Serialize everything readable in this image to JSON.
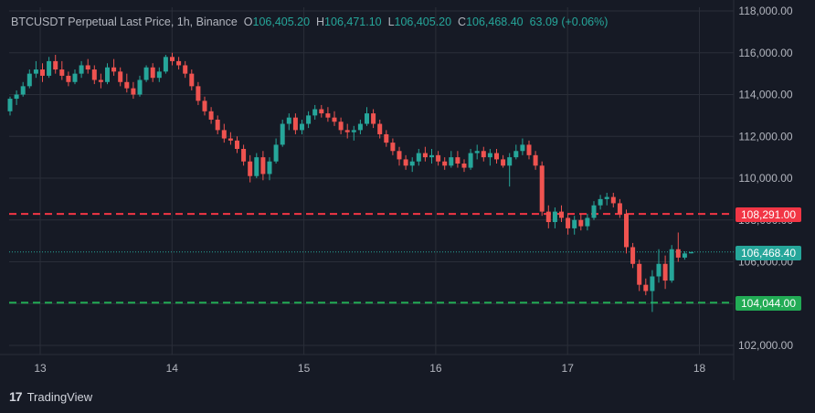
{
  "legend": {
    "symbol": "BTCUSDT Perpetual Last Price, 1h, Binance",
    "o_label": "O",
    "o_value": "106,405.20",
    "h_label": "H",
    "h_value": "106,471.10",
    "l_label": "L",
    "l_value": "106,405.20",
    "c_label": "C",
    "c_value": "106,468.40",
    "change": "63.09 (+0.06%)"
  },
  "colors": {
    "up": "#26a69a",
    "down": "#ef5350",
    "red_line": "#f23645",
    "green_line": "#22ab55",
    "bg": "#161a25",
    "grid": "#2a2e39"
  },
  "price_axis": {
    "labels": [
      "118,000.00",
      "116,000.00",
      "114,000.00",
      "112,000.00",
      "110,000.00",
      "108,000.00",
      "106,000.00",
      "104,000.00",
      "102,000.00"
    ]
  },
  "time_axis": {
    "labels": [
      "13",
      "14",
      "15",
      "16",
      "17",
      "18"
    ]
  },
  "price_tags": {
    "red_line": "108,291.00",
    "last_price": "106,468.40",
    "green_line": "104,044.00"
  },
  "branding": {
    "mark": "17",
    "name": "TradingView"
  },
  "chart_data": {
    "type": "candlestick",
    "horizontal_lines": [
      108291.0,
      104044.0
    ],
    "last_price": 106468.4,
    "ylim": [
      101500,
      118200
    ],
    "candles": [
      [
        113.2,
        113.9,
        113.0,
        113.8
      ],
      [
        113.8,
        114.2,
        113.5,
        114.0
      ],
      [
        114.0,
        114.6,
        113.9,
        114.4
      ],
      [
        114.4,
        115.2,
        114.3,
        115.0
      ],
      [
        115.0,
        115.6,
        114.8,
        115.2
      ],
      [
        115.2,
        115.5,
        114.6,
        114.9
      ],
      [
        114.9,
        115.8,
        114.8,
        115.6
      ],
      [
        115.6,
        115.9,
        115.0,
        115.2
      ],
      [
        115.2,
        115.6,
        114.7,
        114.9
      ],
      [
        114.9,
        115.1,
        114.4,
        114.6
      ],
      [
        114.6,
        115.2,
        114.5,
        115.0
      ],
      [
        115.0,
        115.6,
        114.8,
        115.4
      ],
      [
        115.4,
        115.7,
        115.0,
        115.2
      ],
      [
        115.2,
        115.4,
        114.5,
        114.7
      ],
      [
        114.7,
        115.0,
        114.3,
        114.6
      ],
      [
        114.6,
        115.5,
        114.5,
        115.3
      ],
      [
        115.3,
        115.7,
        114.9,
        115.1
      ],
      [
        115.1,
        115.3,
        114.4,
        114.6
      ],
      [
        114.6,
        115.0,
        114.1,
        114.3
      ],
      [
        114.3,
        114.6,
        113.8,
        114.0
      ],
      [
        114.0,
        114.9,
        113.9,
        114.7
      ],
      [
        114.7,
        115.4,
        114.6,
        115.3
      ],
      [
        115.3,
        115.5,
        114.6,
        114.8
      ],
      [
        114.8,
        115.3,
        114.6,
        115.1
      ],
      [
        115.1,
        115.9,
        115.0,
        115.8
      ],
      [
        115.8,
        116.0,
        115.4,
        115.6
      ],
      [
        115.6,
        115.8,
        115.2,
        115.4
      ],
      [
        115.4,
        115.6,
        114.8,
        115.0
      ],
      [
        115.0,
        115.2,
        114.2,
        114.4
      ],
      [
        114.4,
        114.6,
        113.5,
        113.7
      ],
      [
        113.7,
        113.9,
        113.0,
        113.2
      ],
      [
        113.2,
        113.4,
        112.6,
        112.8
      ],
      [
        112.8,
        113.0,
        112.1,
        112.3
      ],
      [
        112.3,
        112.6,
        111.7,
        111.9
      ],
      [
        111.9,
        112.2,
        111.6,
        111.8
      ],
      [
        111.8,
        112.0,
        111.2,
        111.4
      ],
      [
        111.4,
        111.6,
        110.6,
        110.8
      ],
      [
        110.8,
        111.1,
        109.8,
        110.1
      ],
      [
        110.1,
        111.2,
        110.0,
        111.0
      ],
      [
        111.0,
        111.3,
        109.9,
        110.2
      ],
      [
        110.2,
        111.0,
        109.9,
        110.8
      ],
      [
        110.8,
        111.9,
        110.7,
        111.6
      ],
      [
        111.6,
        112.8,
        111.5,
        112.6
      ],
      [
        112.6,
        113.1,
        112.3,
        112.9
      ],
      [
        112.9,
        113.1,
        112.1,
        112.3
      ],
      [
        112.3,
        112.8,
        112.1,
        112.6
      ],
      [
        112.6,
        113.2,
        112.4,
        113.0
      ],
      [
        113.0,
        113.5,
        112.8,
        113.3
      ],
      [
        113.3,
        113.5,
        112.9,
        113.1
      ],
      [
        113.1,
        113.4,
        112.7,
        112.9
      ],
      [
        112.9,
        113.2,
        112.5,
        112.7
      ],
      [
        112.7,
        112.9,
        112.1,
        112.3
      ],
      [
        112.3,
        112.6,
        111.9,
        112.2
      ],
      [
        112.2,
        112.5,
        111.8,
        112.3
      ],
      [
        112.3,
        112.8,
        112.1,
        112.6
      ],
      [
        112.6,
        113.4,
        112.5,
        113.1
      ],
      [
        113.1,
        113.3,
        112.4,
        112.6
      ],
      [
        112.6,
        112.8,
        111.9,
        112.1
      ],
      [
        112.1,
        112.3,
        111.5,
        111.7
      ],
      [
        111.7,
        111.9,
        111.1,
        111.3
      ],
      [
        111.3,
        111.5,
        110.6,
        110.9
      ],
      [
        110.9,
        111.1,
        110.4,
        110.6
      ],
      [
        110.6,
        111.0,
        110.3,
        110.8
      ],
      [
        110.8,
        111.4,
        110.6,
        111.2
      ],
      [
        111.2,
        111.5,
        110.8,
        111.0
      ],
      [
        111.0,
        111.4,
        110.7,
        111.1
      ],
      [
        111.1,
        111.3,
        110.6,
        110.8
      ],
      [
        110.8,
        111.0,
        110.4,
        110.6
      ],
      [
        110.6,
        111.3,
        110.5,
        111.0
      ],
      [
        111.0,
        111.3,
        110.5,
        110.7
      ],
      [
        110.7,
        110.9,
        110.3,
        110.5
      ],
      [
        110.5,
        111.4,
        110.4,
        111.2
      ],
      [
        111.2,
        111.6,
        110.9,
        111.3
      ],
      [
        111.3,
        111.5,
        110.8,
        111.0
      ],
      [
        111.0,
        111.4,
        110.6,
        111.2
      ],
      [
        111.2,
        111.4,
        110.7,
        110.9
      ],
      [
        110.9,
        111.1,
        110.5,
        110.6
      ],
      [
        110.6,
        111.2,
        109.6,
        111.0
      ],
      [
        111.0,
        111.6,
        110.9,
        111.3
      ],
      [
        111.3,
        111.9,
        111.1,
        111.6
      ],
      [
        111.6,
        111.8,
        110.9,
        111.1
      ],
      [
        111.1,
        111.3,
        110.4,
        110.6
      ],
      [
        110.6,
        110.8,
        108.2,
        108.4
      ],
      [
        108.4,
        108.7,
        107.6,
        107.9
      ],
      [
        107.9,
        108.6,
        107.6,
        108.4
      ],
      [
        108.4,
        108.7,
        107.9,
        108.1
      ],
      [
        108.1,
        108.3,
        107.3,
        107.6
      ],
      [
        107.6,
        108.2,
        107.3,
        108.0
      ],
      [
        108.0,
        108.3,
        107.5,
        107.7
      ],
      [
        107.7,
        108.3,
        107.5,
        108.1
      ],
      [
        108.1,
        108.9,
        108.0,
        108.7
      ],
      [
        108.7,
        109.2,
        108.5,
        109.0
      ],
      [
        109.0,
        109.3,
        108.7,
        109.1
      ],
      [
        109.1,
        109.3,
        108.6,
        108.8
      ],
      [
        108.8,
        109.0,
        108.1,
        108.3
      ],
      [
        108.3,
        108.5,
        106.4,
        106.7
      ],
      [
        106.7,
        106.9,
        105.7,
        105.9
      ],
      [
        105.9,
        106.1,
        104.6,
        104.9
      ],
      [
        104.9,
        105.2,
        104.4,
        104.6
      ],
      [
        104.6,
        105.6,
        103.6,
        105.3
      ],
      [
        105.3,
        106.6,
        105.0,
        105.9
      ],
      [
        105.9,
        106.3,
        104.7,
        105.1
      ],
      [
        105.1,
        106.8,
        105.0,
        106.6
      ],
      [
        106.6,
        107.4,
        106.0,
        106.2
      ],
      [
        106.2,
        106.5,
        106.1,
        106.4
      ],
      [
        106.405,
        106.471,
        106.405,
        106.468
      ]
    ]
  }
}
